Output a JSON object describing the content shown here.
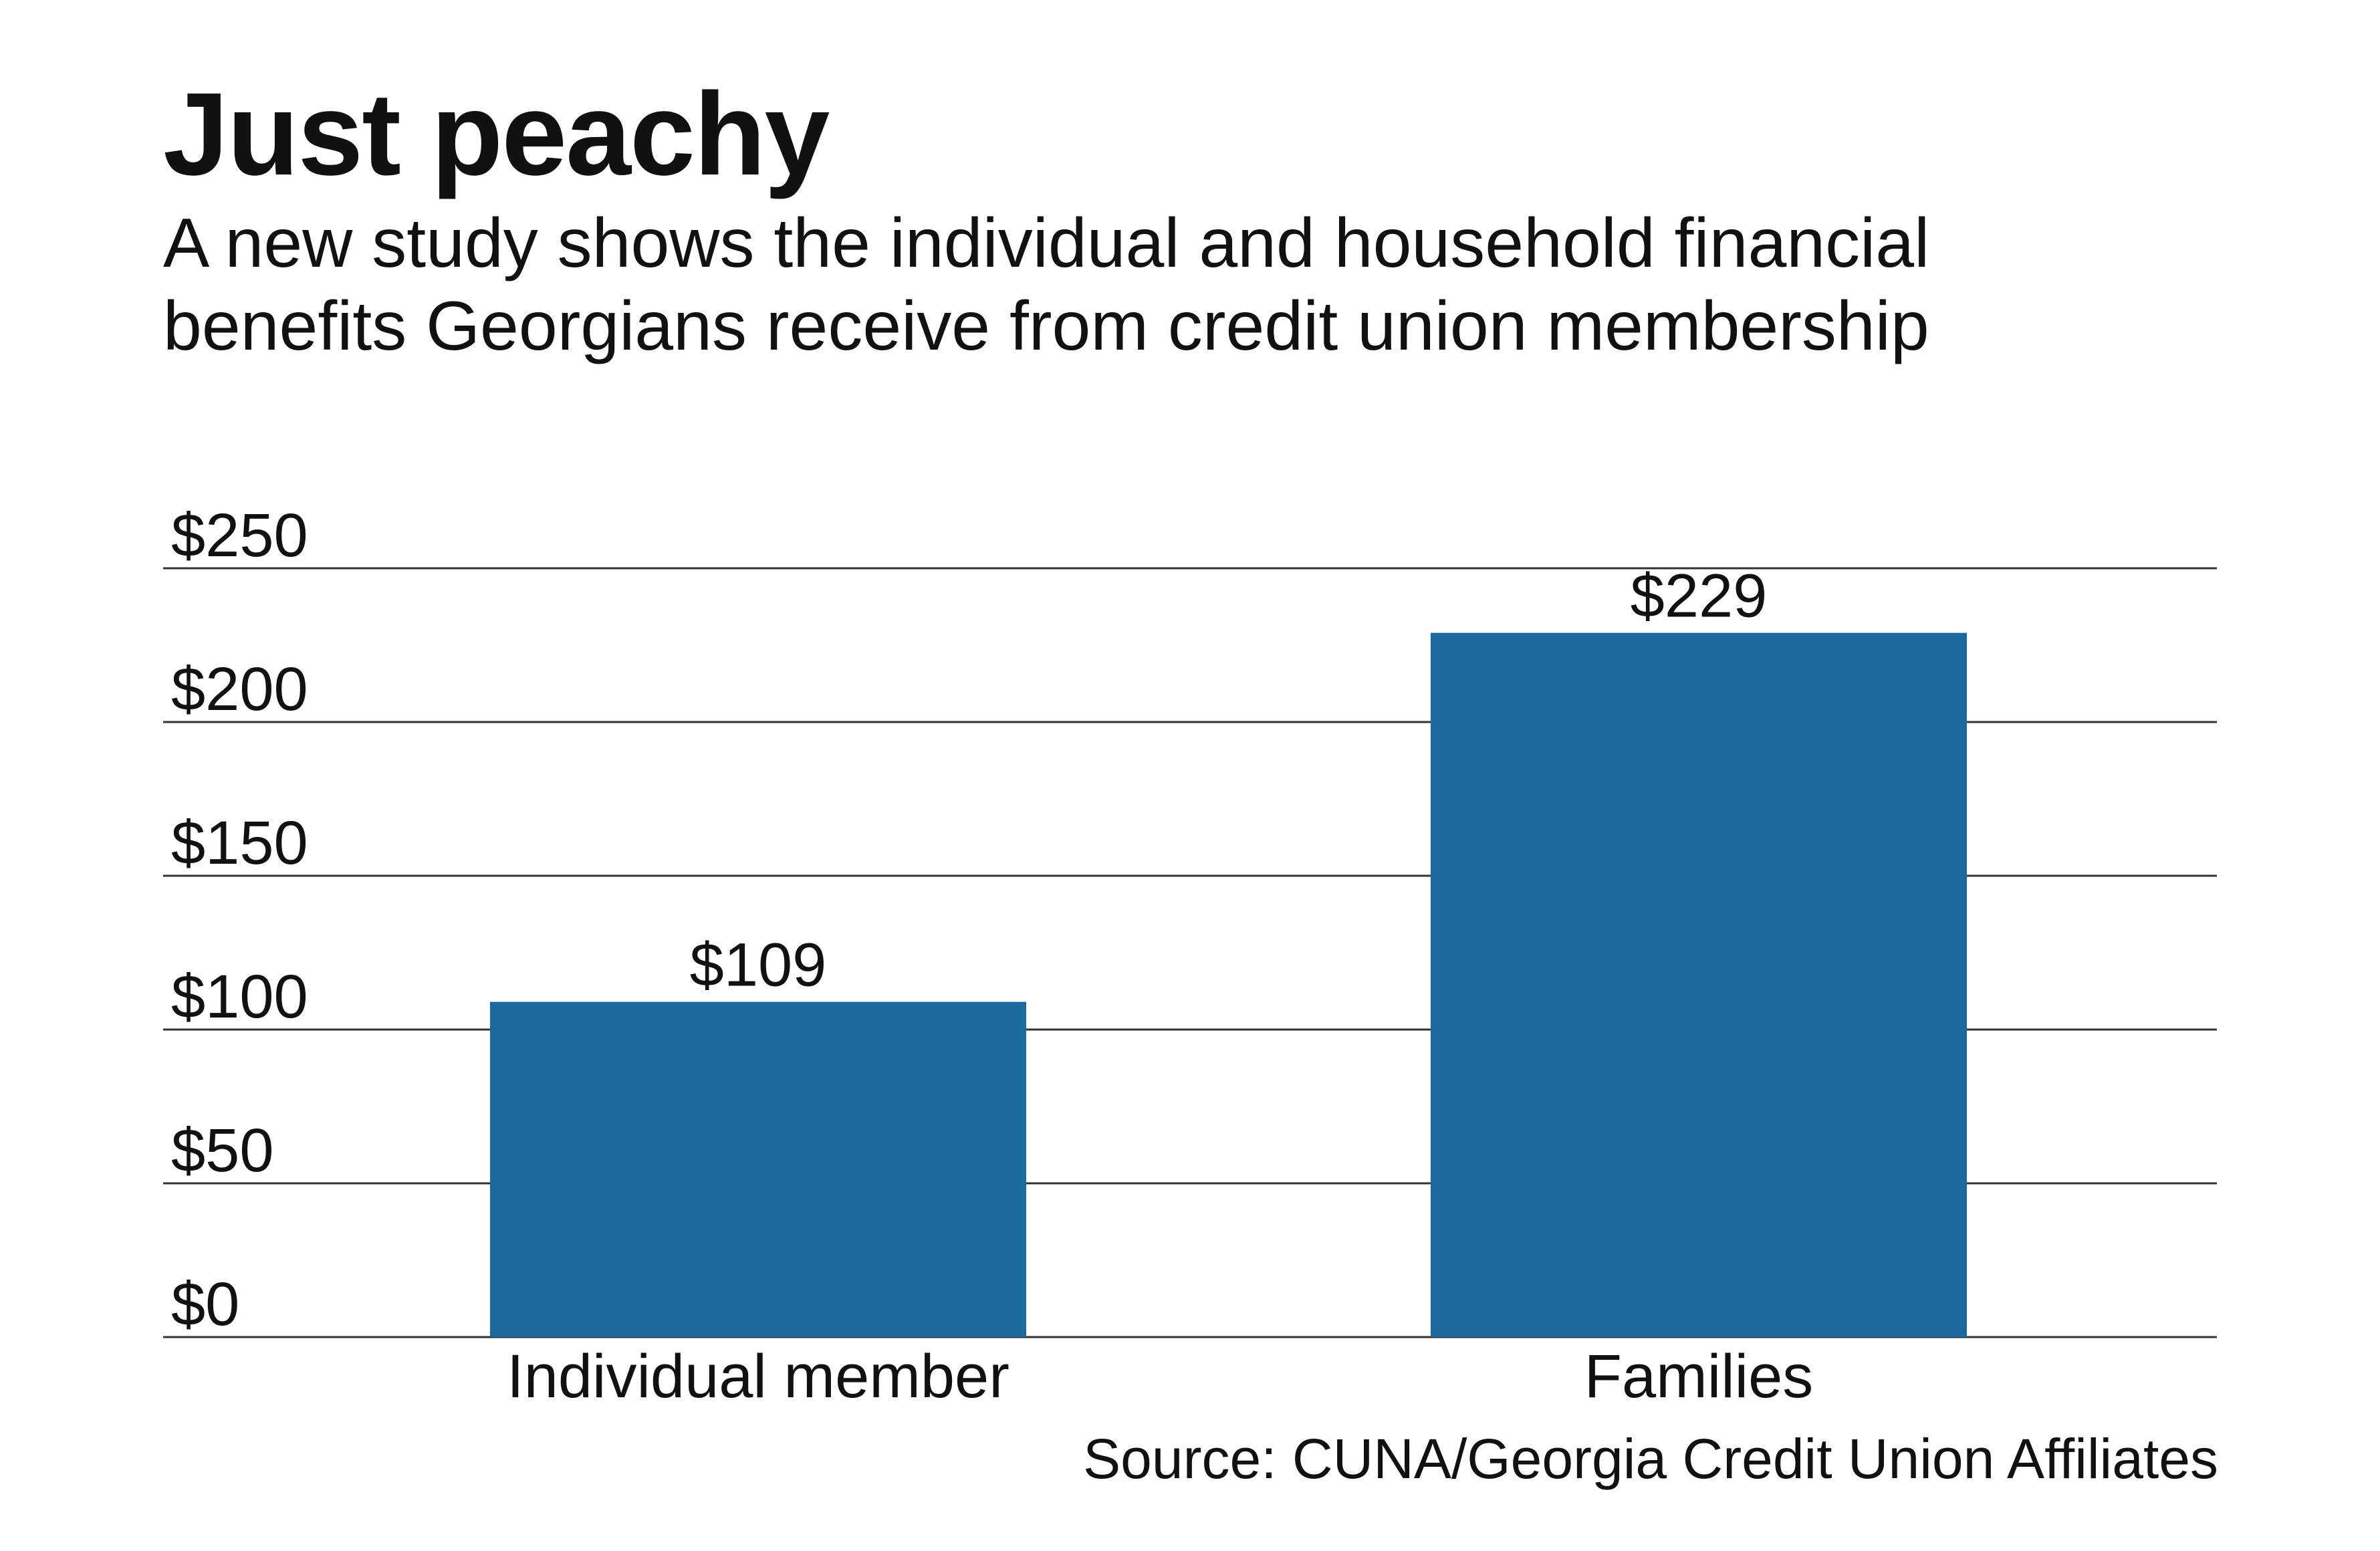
{
  "chart_data": {
    "type": "bar",
    "title": "Just peachy",
    "subtitle_lines": [
      "A new study shows the individual and household financial",
      "benefits Georgians receive from credit union membership"
    ],
    "categories": [
      "Individual member",
      "Families"
    ],
    "values": [
      109,
      229
    ],
    "data_labels": [
      "$109",
      "$229"
    ],
    "ylim": [
      0,
      250
    ],
    "yticks": [
      0,
      50,
      100,
      150,
      200,
      250
    ],
    "ytick_labels": [
      "$0",
      "$50",
      "$100",
      "$150",
      "$200",
      "$250"
    ],
    "grid": true,
    "bar_color": "#1c69a0",
    "source": "Source: CUNA/Georgia Credit Union Affiliates"
  }
}
